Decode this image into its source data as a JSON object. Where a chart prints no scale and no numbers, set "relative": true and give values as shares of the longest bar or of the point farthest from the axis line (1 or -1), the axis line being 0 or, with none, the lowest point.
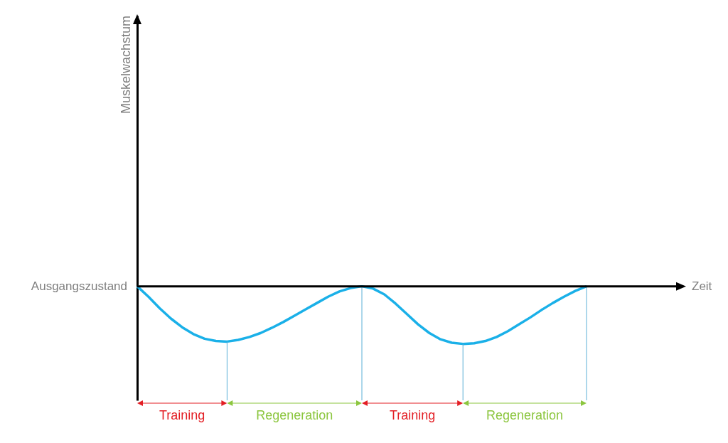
{
  "chart_data": {
    "type": "line",
    "relative": true,
    "categories": [
      null,
      null,
      null,
      null,
      null,
      null,
      null,
      null,
      null,
      null,
      null,
      null,
      null,
      null,
      null,
      null,
      null,
      null,
      null,
      null,
      null,
      null,
      null,
      null,
      null,
      null,
      null,
      null,
      null,
      null,
      null,
      null,
      null,
      null,
      null,
      null,
      null,
      null,
      null,
      null,
      null
    ],
    "series": [
      {
        "color": "#1ab0e8",
        "values": [
          0,
          -0.18,
          -0.38,
          -0.56,
          -0.71,
          -0.83,
          -0.91,
          -0.95,
          -0.96,
          -0.93,
          -0.88,
          -0.81,
          -0.72,
          -0.62,
          -0.51,
          -0.4,
          -0.29,
          -0.18,
          -0.09,
          -0.03,
          0,
          -0.04,
          -0.14,
          -0.3,
          -0.48,
          -0.66,
          -0.81,
          -0.92,
          -0.98,
          -1,
          -0.99,
          -0.95,
          -0.88,
          -0.78,
          -0.66,
          -0.54,
          -0.41,
          -0.29,
          -0.18,
          -0.08,
          0
        ]
      }
    ],
    "annotations": [
      "Ausgangszustand",
      "Zeit",
      "Muskelwachstum",
      "Training",
      "Regeneration",
      "Training",
      "Regeneration"
    ]
  }
}
